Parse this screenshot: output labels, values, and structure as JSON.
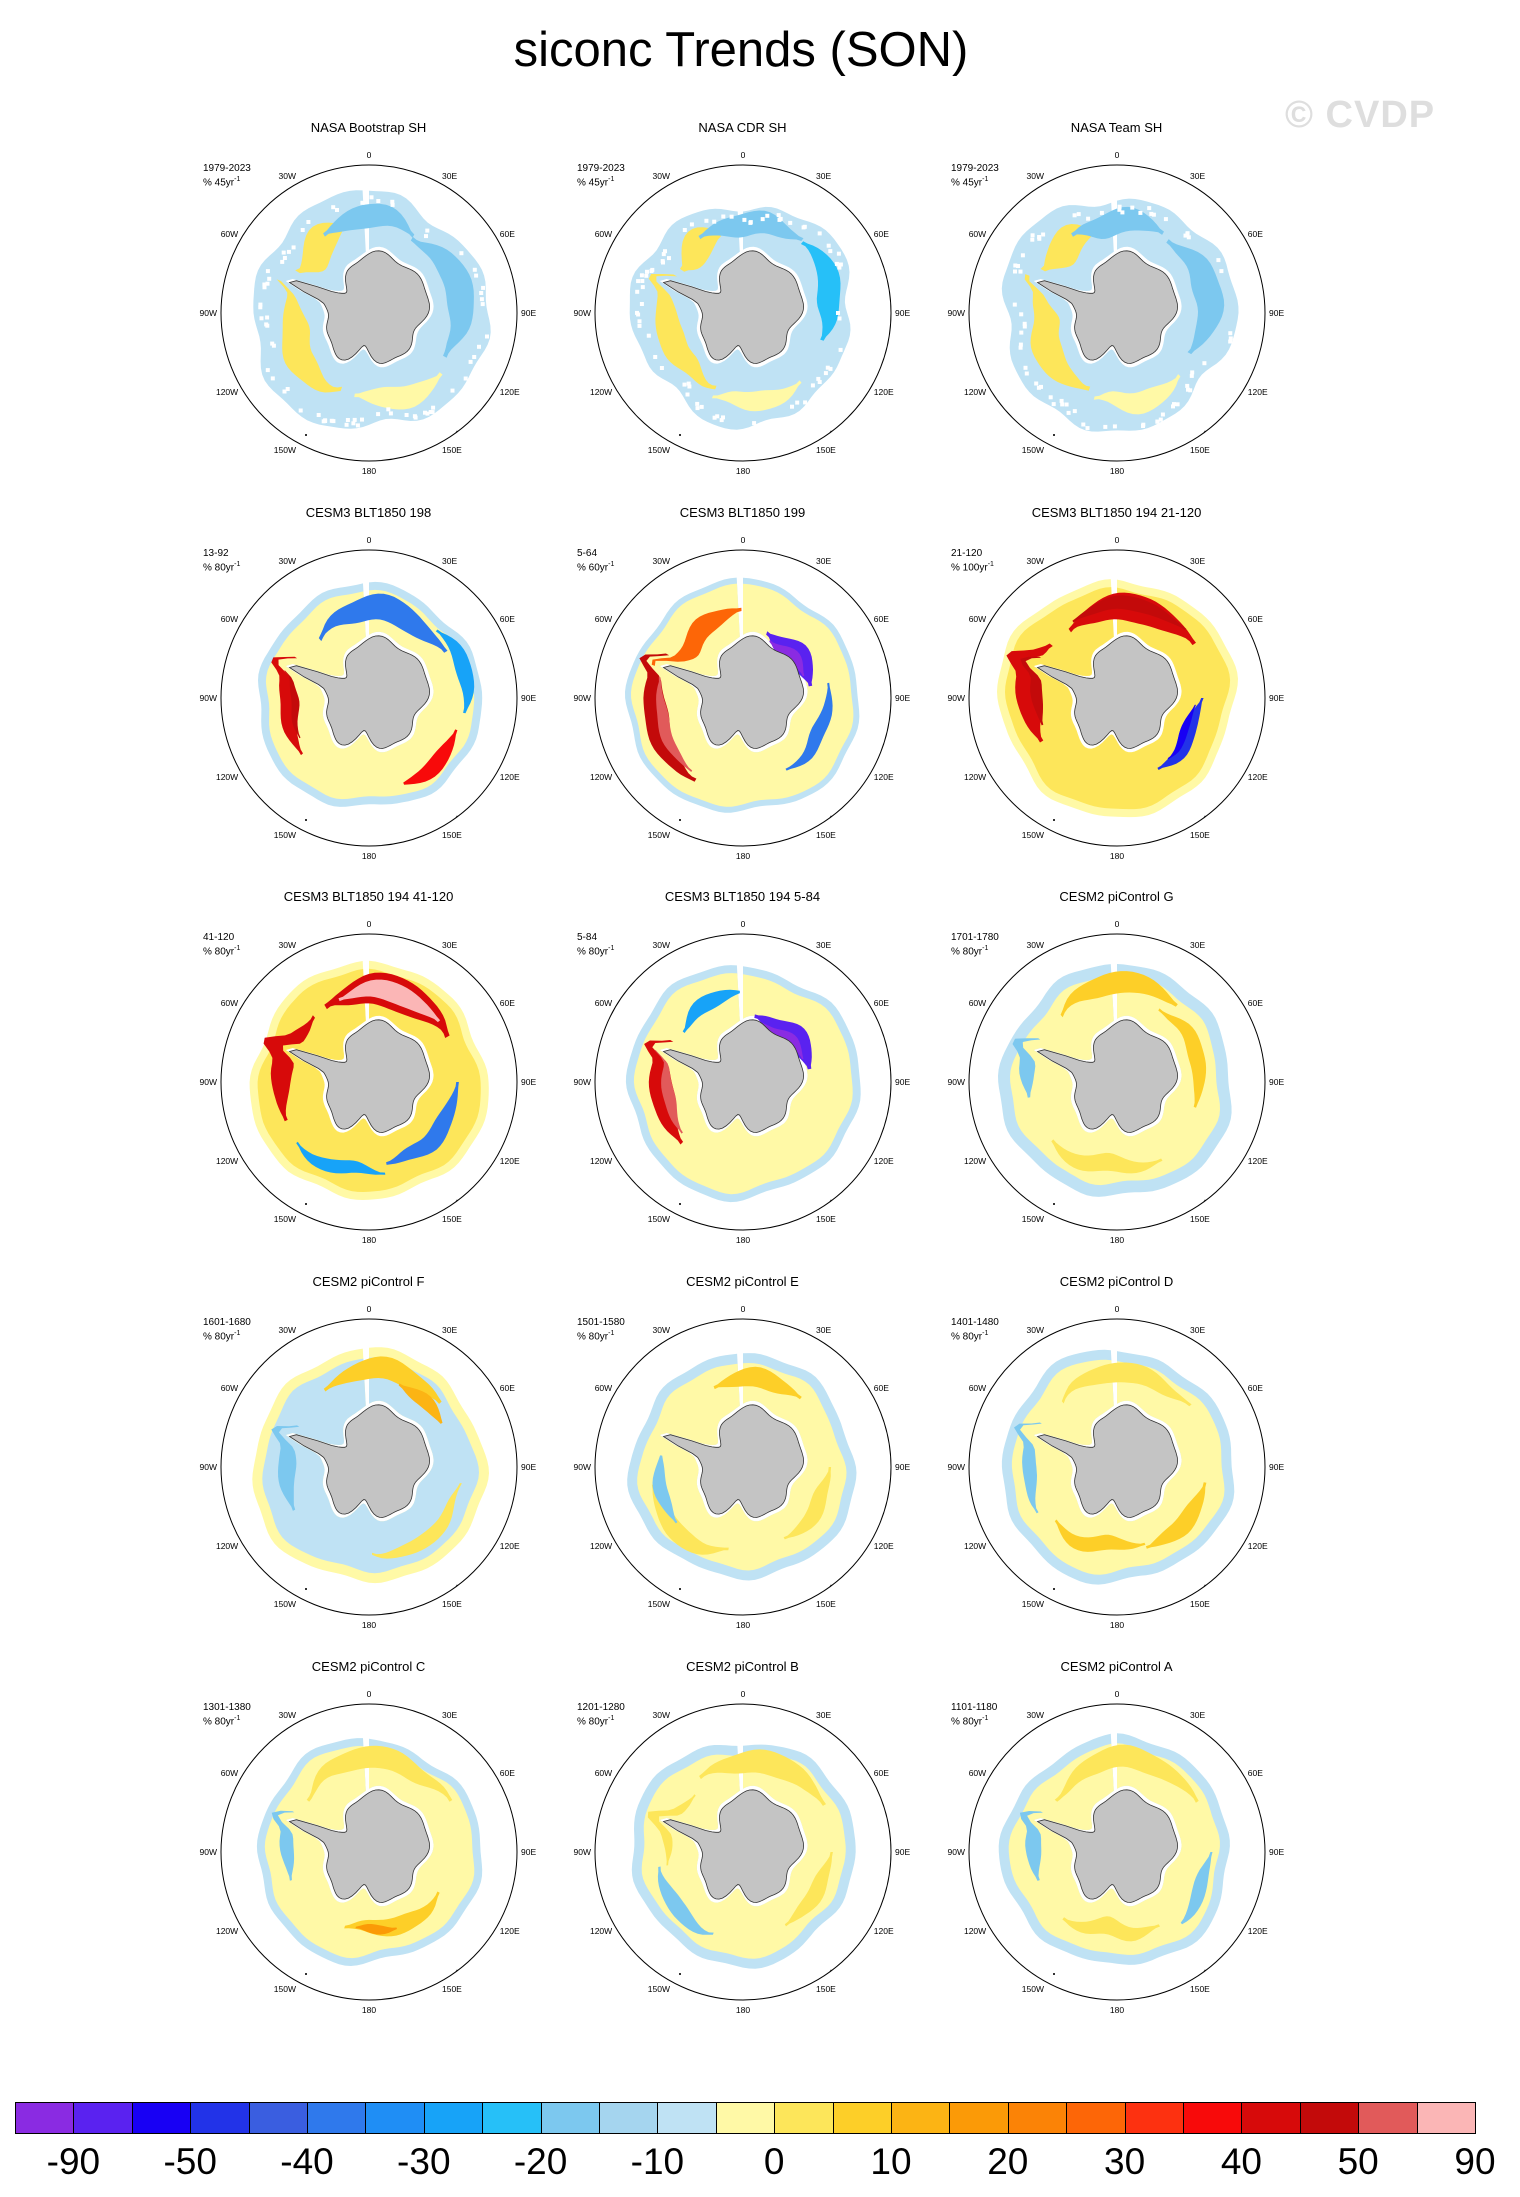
{
  "title": "siconc Trends (SON)",
  "watermark": "© CVDP",
  "lon_labels": [
    "0",
    "30E",
    "60E",
    "90E",
    "120E",
    "150E",
    "180",
    "150W",
    "120W",
    "90W",
    "60W",
    "30W"
  ],
  "land_color": "#c4c4c4",
  "panels": [
    {
      "title": "NASA Bootstrap SH",
      "period": "1979-2023",
      "units": "% 45yr",
      "exp": "-1",
      "pattern": "obs1"
    },
    {
      "title": "NASA CDR SH",
      "period": "1979-2023",
      "units": "% 45yr",
      "exp": "-1",
      "pattern": "obs2"
    },
    {
      "title": "NASA Team SH",
      "period": "1979-2023",
      "units": "% 45yr",
      "exp": "-1",
      "pattern": "obs3"
    },
    {
      "title": "CESM3 BLT1850 198",
      "period": "13-92",
      "units": "% 80yr",
      "exp": "-1",
      "pattern": "m198"
    },
    {
      "title": "CESM3 BLT1850 199",
      "period": "5-64",
      "units": "% 60yr",
      "exp": "-1",
      "pattern": "m199"
    },
    {
      "title": "CESM3 BLT1850 194 21-120",
      "period": "21-120",
      "units": "% 100yr",
      "exp": "-1",
      "pattern": "m194a"
    },
    {
      "title": "CESM3 BLT1850 194 41-120",
      "period": "41-120",
      "units": "% 80yr",
      "exp": "-1",
      "pattern": "m194b"
    },
    {
      "title": "CESM3 BLT1850 194 5-84",
      "period": "5-84",
      "units": "% 80yr",
      "exp": "-1",
      "pattern": "m194c"
    },
    {
      "title": "CESM2 piControl G",
      "period": "1701-1780",
      "units": "% 80yr",
      "exp": "-1",
      "pattern": "pcG"
    },
    {
      "title": "CESM2 piControl F",
      "period": "1601-1680",
      "units": "% 80yr",
      "exp": "-1",
      "pattern": "pcF"
    },
    {
      "title": "CESM2 piControl E",
      "period": "1501-1580",
      "units": "% 80yr",
      "exp": "-1",
      "pattern": "pcE"
    },
    {
      "title": "CESM2 piControl D",
      "period": "1401-1480",
      "units": "% 80yr",
      "exp": "-1",
      "pattern": "pcD"
    },
    {
      "title": "CESM2 piControl C",
      "period": "1301-1380",
      "units": "% 80yr",
      "exp": "-1",
      "pattern": "pcC"
    },
    {
      "title": "CESM2 piControl B",
      "period": "1201-1280",
      "units": "% 80yr",
      "exp": "-1",
      "pattern": "pcB"
    },
    {
      "title": "CESM2 piControl A",
      "period": "1101-1180",
      "units": "% 80yr",
      "exp": "-1",
      "pattern": "pcA"
    }
  ],
  "colorbar": {
    "colors": [
      "#8a2be2",
      "#5a22f0",
      "#1800f4",
      "#2233e8",
      "#3a5ee0",
      "#2f79ec",
      "#1f8ef5",
      "#17a3f8",
      "#26c0f8",
      "#7cc8ef",
      "#a5d5ef",
      "#bfe2f4",
      "#fff9a6",
      "#fde65a",
      "#fdcf28",
      "#fcb414",
      "#fb9a07",
      "#fb8306",
      "#fd6607",
      "#fd3110",
      "#f80a0a",
      "#d70a0a",
      "#c30a0a",
      "#e15a5a",
      "#fbb6b6"
    ],
    "labels": [
      "-90",
      "-50",
      "-40",
      "-30",
      "-20",
      "-10",
      "0",
      "10",
      "20",
      "30",
      "40",
      "50",
      "90"
    ]
  }
}
